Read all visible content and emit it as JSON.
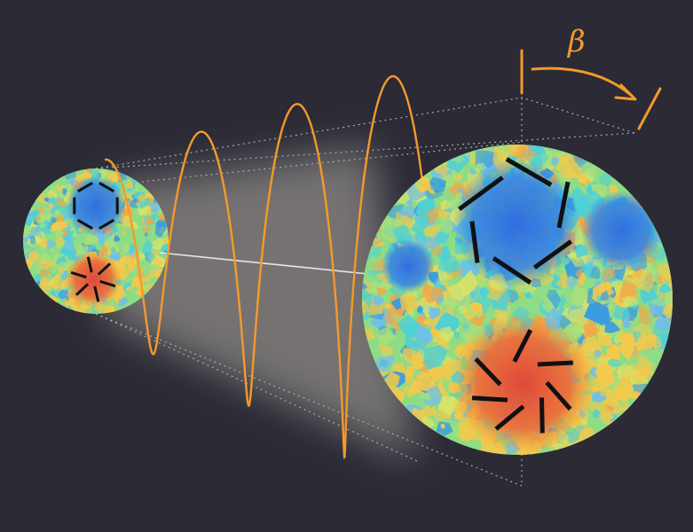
{
  "diagram": {
    "angle_label": "β",
    "colors": {
      "background": "#2b2a35",
      "accent": "#f39a2b",
      "polarization_bars": "#111111",
      "guide_lines": "#a9a9b0",
      "connector": "#e6e6ea",
      "map_cold": "#2f6fe0",
      "map_cool": "#4fd0d6",
      "map_mid": "#a9e07a",
      "map_warm": "#f2c94c",
      "map_hot": "#e0483b"
    },
    "elements": {
      "small_sphere": "cmb-temperature-map",
      "large_sphere": "cmb-temperature-map",
      "helix": "polarization-rotation-helix",
      "cold_spot_pattern": "ring-of-bars",
      "hot_spot_pattern": "radial-star-of-bars"
    }
  }
}
